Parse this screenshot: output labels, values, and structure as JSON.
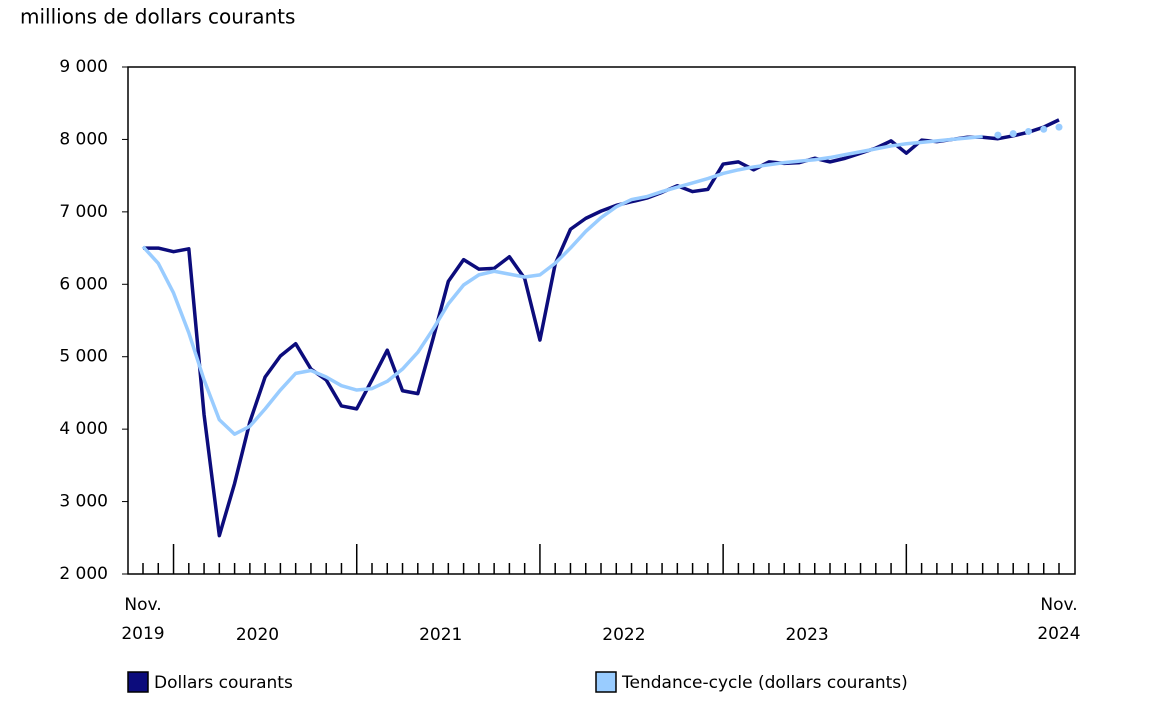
{
  "chart_data": {
    "type": "line",
    "title": "millions de dollars courants",
    "categories": [
      "Nov. 2019",
      null,
      null,
      null,
      null,
      null,
      null,
      null,
      null,
      null,
      null,
      null,
      null,
      null,
      null,
      null,
      null,
      null,
      null,
      null,
      null,
      null,
      null,
      null,
      null,
      null,
      null,
      null,
      null,
      null,
      null,
      null,
      null,
      null,
      null,
      null,
      null,
      null,
      null,
      null,
      null,
      null,
      null,
      null,
      null,
      null,
      null,
      null,
      null,
      null,
      null,
      null,
      null,
      null,
      null,
      null,
      null,
      null,
      null,
      null,
      "Nov. 2024"
    ],
    "year_labels": [
      "2020",
      "2021",
      "2022",
      "2023"
    ],
    "series": [
      {
        "name": "Dollars courants",
        "color": "#0c0c7c",
        "values": [
          6500,
          6500,
          6450,
          6490,
          4200,
          2530,
          3250,
          4100,
          4720,
          5010,
          5180,
          4830,
          4680,
          4320,
          4280,
          4680,
          5090,
          4530,
          4490,
          5250,
          6040,
          6340,
          6210,
          6220,
          6380,
          6080,
          5230,
          6280,
          6760,
          6910,
          7010,
          7090,
          7140,
          7190,
          7270,
          7360,
          7280,
          7310,
          7660,
          7690,
          7580,
          7690,
          7670,
          7680,
          7740,
          7690,
          7740,
          7810,
          7880,
          7980,
          7810,
          7990,
          7970,
          8000,
          8030,
          8030,
          8010,
          8050,
          8100,
          8170,
          8270
        ]
      },
      {
        "name": "Tendance-cycle (dollars courants)",
        "color": "#99ccff",
        "dotted_from_index": 56,
        "values": [
          6520,
          6290,
          5880,
          5330,
          4680,
          4130,
          3930,
          4040,
          4280,
          4540,
          4770,
          4810,
          4720,
          4600,
          4540,
          4560,
          4660,
          4830,
          5060,
          5380,
          5730,
          5990,
          6130,
          6180,
          6140,
          6100,
          6130,
          6290,
          6500,
          6730,
          6920,
          7070,
          7170,
          7210,
          7280,
          7340,
          7400,
          7460,
          7530,
          7580,
          7620,
          7650,
          7680,
          7700,
          7720,
          7750,
          7790,
          7830,
          7870,
          7910,
          7940,
          7960,
          7980,
          8000,
          8020,
          8040,
          8060,
          8080,
          8110,
          8140,
          8170
        ]
      }
    ],
    "ylim": [
      2000,
      9000
    ],
    "yticks": [
      {
        "value": 2000,
        "label": "2 000"
      },
      {
        "value": 3000,
        "label": "3 000"
      },
      {
        "value": 4000,
        "label": "4 000"
      },
      {
        "value": 5000,
        "label": "5 000"
      },
      {
        "value": 6000,
        "label": "6 000"
      },
      {
        "value": 7000,
        "label": "7 000"
      },
      {
        "value": 8000,
        "label": "8 000"
      },
      {
        "value": 9000,
        "label": "9 000"
      }
    ],
    "grid": false
  }
}
